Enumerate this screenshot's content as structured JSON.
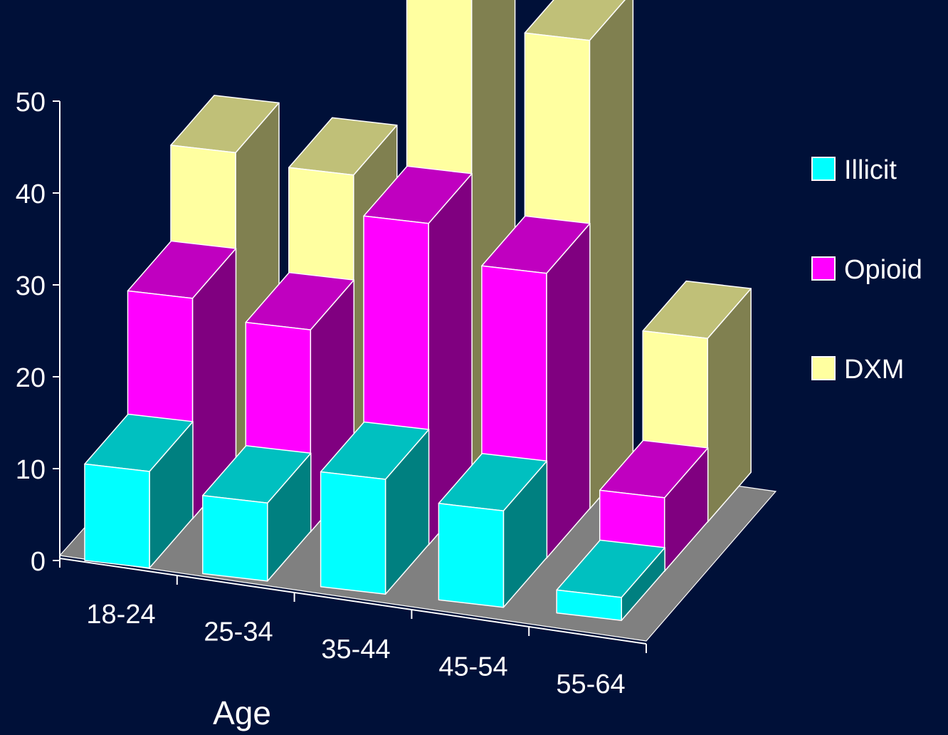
{
  "chart_data": {
    "type": "bar",
    "title": "",
    "xlabel": "Age",
    "ylabel": "",
    "ylim": [
      0,
      50
    ],
    "yticks": [
      0,
      10,
      20,
      30,
      40,
      50
    ],
    "categories": [
      "18-24",
      "25-34",
      "35-44",
      "45-54",
      "55-64"
    ],
    "series": [
      {
        "name": "Illicit",
        "values": [
          10.5,
          8.5,
          12.5,
          10.5,
          2.5
        ]
      },
      {
        "name": "Opioid",
        "values": [
          24,
          22,
          35,
          31,
          8
        ]
      },
      {
        "name": "DXM",
        "values": [
          34.5,
          33.5,
          55,
          51,
          20
        ]
      }
    ],
    "legend": {
      "position": "right"
    },
    "grid": false,
    "colors": {
      "background": "#001038",
      "floor": "#808080",
      "Illicit": {
        "front": "#00ffff",
        "top": "#00c0c0",
        "side": "#008080"
      },
      "Opioid": {
        "front": "#ff00ff",
        "top": "#c000c0",
        "side": "#800080"
      },
      "DXM": {
        "front": "#ffffa0",
        "top": "#c0c078",
        "side": "#808050"
      }
    }
  }
}
